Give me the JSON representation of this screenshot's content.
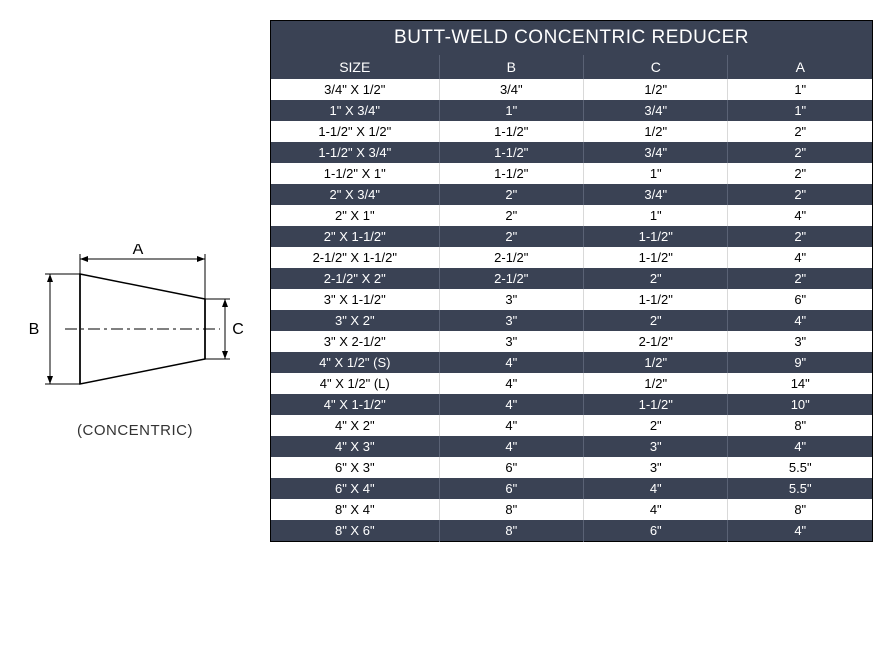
{
  "table": {
    "title": "BUTT-WELD CONCENTRIC REDUCER",
    "title_bg": "#3a4254",
    "title_color": "#ffffff",
    "header_bg": "#3a4254",
    "header_color": "#ffffff",
    "row_light_bg": "#ffffff",
    "row_light_color": "#000000",
    "row_dark_bg": "#3a4254",
    "row_dark_color": "#ffffff",
    "border_color": "#000000",
    "columns": [
      "SIZE",
      "B",
      "C",
      "A"
    ],
    "rows": [
      [
        "3/4\" X 1/2\"",
        "3/4\"",
        "1/2\"",
        "1\""
      ],
      [
        "1\" X 3/4\"",
        "1\"",
        "3/4\"",
        "1\""
      ],
      [
        "1-1/2\" X 1/2\"",
        "1-1/2\"",
        "1/2\"",
        "2\""
      ],
      [
        "1-1/2\" X 3/4\"",
        "1-1/2\"",
        "3/4\"",
        "2\""
      ],
      [
        "1-1/2\" X 1\"",
        "1-1/2\"",
        "1\"",
        "2\""
      ],
      [
        "2\" X 3/4\"",
        "2\"",
        "3/4\"",
        "2\""
      ],
      [
        "2\" X 1\"",
        "2\"",
        "1\"",
        "4\""
      ],
      [
        "2\" X 1-1/2\"",
        "2\"",
        "1-1/2\"",
        "2\""
      ],
      [
        "2-1/2\" X 1-1/2\"",
        "2-1/2\"",
        "1-1/2\"",
        "4\""
      ],
      [
        "2-1/2\" X 2\"",
        "2-1/2\"",
        "2\"",
        "2\""
      ],
      [
        "3\" X 1-1/2\"",
        "3\"",
        "1-1/2\"",
        "6\""
      ],
      [
        "3\" X 2\"",
        "3\"",
        "2\"",
        "4\""
      ],
      [
        "3\" X 2-1/2\"",
        "3\"",
        "2-1/2\"",
        "3\""
      ],
      [
        "4\" X 1/2\" (S)",
        "4\"",
        "1/2\"",
        "9\""
      ],
      [
        "4\" X 1/2\" (L)",
        "4\"",
        "1/2\"",
        "14\""
      ],
      [
        "4\" X 1-1/2\"",
        "4\"",
        "1-1/2\"",
        "10\""
      ],
      [
        "4\" X 2\"",
        "4\"",
        "2\"",
        "8\""
      ],
      [
        "4\" X 3\"",
        "4\"",
        "3\"",
        "4\""
      ],
      [
        "6\" X 3\"",
        "6\"",
        "3\"",
        "5.5\""
      ],
      [
        "6\" X 4\"",
        "6\"",
        "4\"",
        "5.5\""
      ],
      [
        "8\" X 4\"",
        "8\"",
        "4\"",
        "8\""
      ],
      [
        "8\" X 6\"",
        "8\"",
        "6\"",
        "4\""
      ]
    ]
  },
  "diagram": {
    "caption": "(CONCENTRIC)",
    "label_a": "A",
    "label_b": "B",
    "label_c": "C",
    "stroke": "#000000",
    "stroke_width": 1.5,
    "font_size": 16
  }
}
